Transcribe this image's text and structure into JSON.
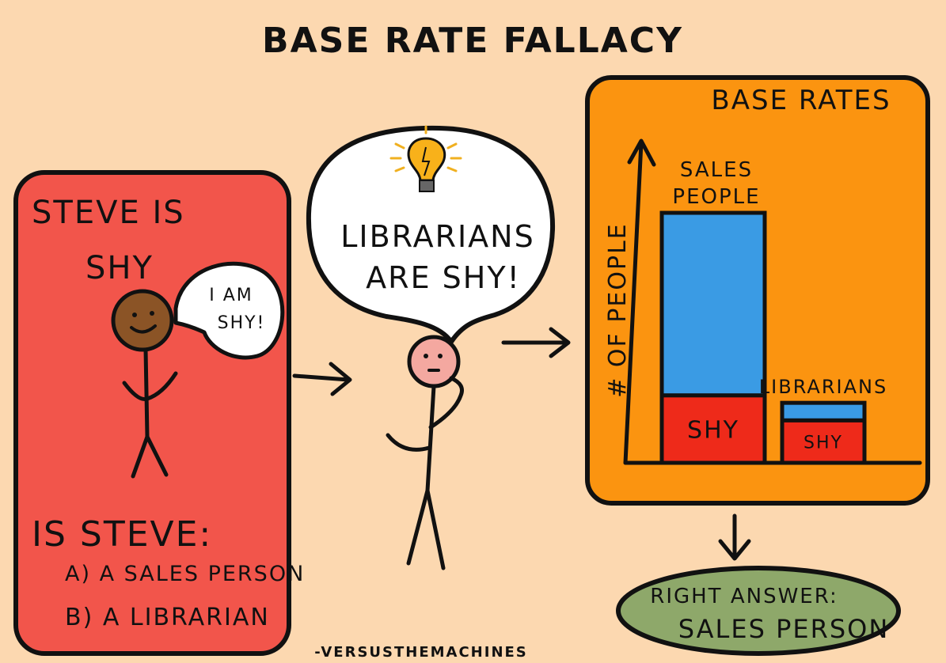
{
  "title": "BASE RATE FALLACY",
  "left_panel": {
    "statement_line1": "STEVE IS",
    "statement_line2": "SHY",
    "speech_line1": "I AM",
    "speech_line2": "SHY!",
    "question": "IS STEVE:",
    "option_a": "A) A SALES PERSON",
    "option_b": "B) A LIBRARIAN",
    "color": "#f2554b"
  },
  "middle": {
    "thought_line1": "LIBRARIANS",
    "thought_line2": "ARE SHY!",
    "icon": "lightbulb-icon"
  },
  "right_panel": {
    "title": "BASE RATES",
    "color": "#fb9410",
    "chart_data": {
      "type": "bar",
      "ylabel": "# OF PEOPLE",
      "categories": [
        "SALES PEOPLE",
        "LIBRARIANS"
      ],
      "category_label_lines": [
        [
          "SALES",
          "PEOPLE"
        ],
        [
          "LIBRARIANS"
        ]
      ],
      "series": [
        {
          "name": "SHY",
          "values": [
            0.27,
            0.17
          ],
          "color": "#ee2a1a"
        },
        {
          "values": [
            0.73,
            0.07
          ],
          "color": "#3a9be4"
        }
      ]
    }
  },
  "answer": {
    "line1": "RIGHT ANSWER:",
    "line2": "SALES PERSON",
    "color": "#8ea86a"
  },
  "credit": "-VERSUSTHEMACHINES"
}
